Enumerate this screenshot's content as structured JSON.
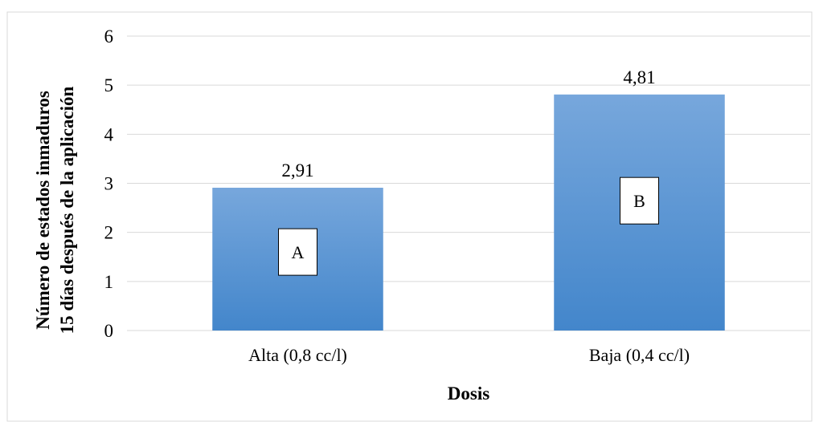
{
  "chart_data": {
    "type": "bar",
    "title": "",
    "xlabel": "Dosis",
    "ylabel_lines": [
      "Número de estados inmaduros",
      "15 días después de la aplicación"
    ],
    "categories": [
      "Alta (0,8 cc/l)",
      "Baja (0,4 cc/l)"
    ],
    "values": [
      2.91,
      4.81
    ],
    "data_labels": [
      "2,91",
      "4,81"
    ],
    "group_labels": [
      "A",
      "B"
    ],
    "ylim": [
      0,
      6
    ],
    "yticks": [
      "0",
      "1",
      "2",
      "3",
      "4",
      "5",
      "6"
    ],
    "grid": true,
    "legend": "none",
    "colors": {
      "bar_top": "#77A7DC",
      "bar_bottom": "#4386CB",
      "gridline": "#D9D9D9",
      "frame": "#D9D9D9"
    }
  }
}
